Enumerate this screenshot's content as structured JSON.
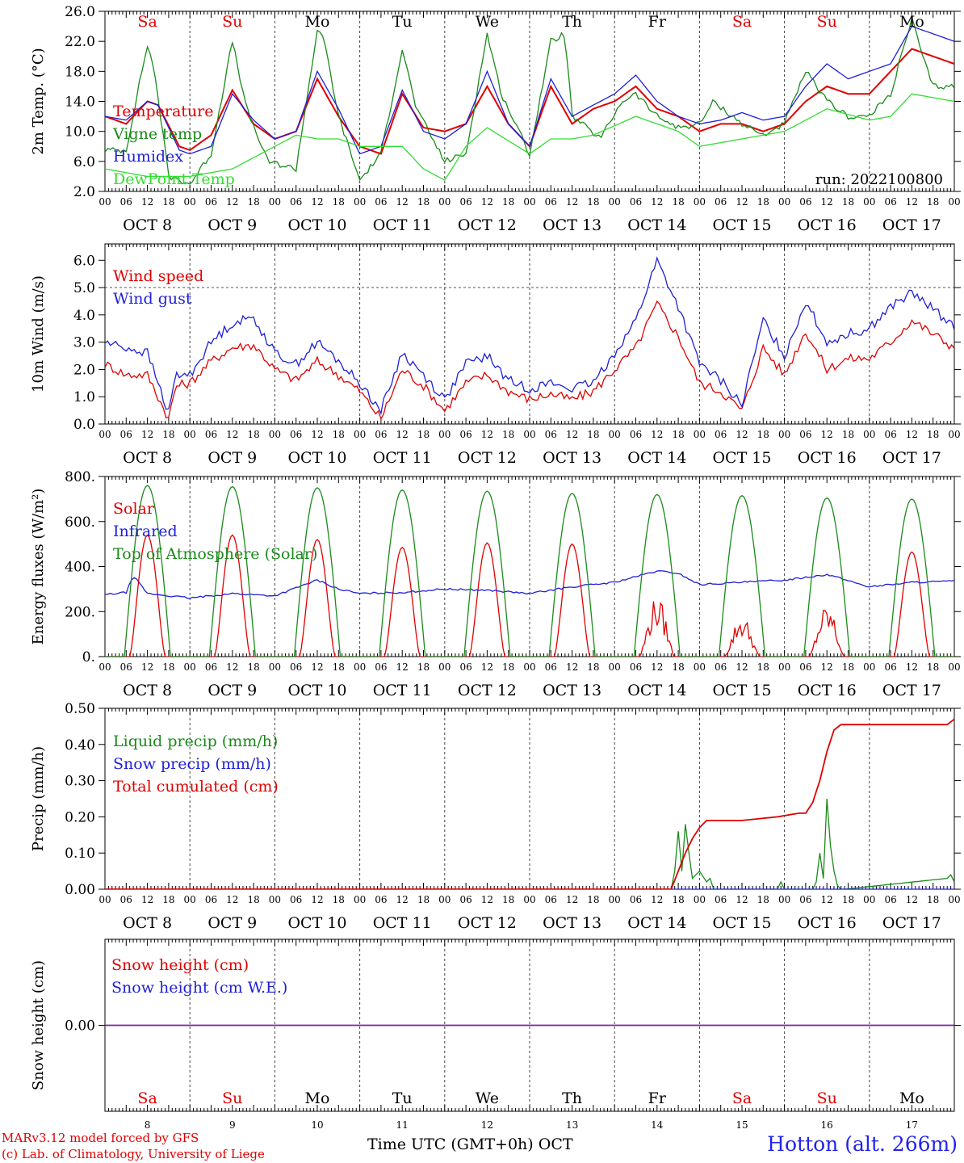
{
  "colors": {
    "red": "#e00000",
    "green": "#1a8a1a",
    "blue": "#1f1fd8",
    "lightgreen": "#33dd33",
    "purple": "#7a1fb0",
    "axis": "#000000"
  },
  "days": [
    {
      "abbr": "Sa",
      "num": "8",
      "weekend": true
    },
    {
      "abbr": "Su",
      "num": "9",
      "weekend": true
    },
    {
      "abbr": "Mo",
      "num": "10",
      "weekend": false
    },
    {
      "abbr": "Tu",
      "num": "11",
      "weekend": false
    },
    {
      "abbr": "We",
      "num": "12",
      "weekend": false
    },
    {
      "abbr": "Th",
      "num": "13",
      "weekend": false
    },
    {
      "abbr": "Fr",
      "num": "14",
      "weekend": false
    },
    {
      "abbr": "Sa",
      "num": "15",
      "weekend": true
    },
    {
      "abbr": "Su",
      "num": "16",
      "weekend": true
    },
    {
      "abbr": "Mo",
      "num": "17",
      "weekend": false
    }
  ],
  "month_label": "OCT",
  "hour_ticks": [
    "00",
    "06",
    "12",
    "18"
  ],
  "footer": {
    "model": "MARv3.12 model forced by GFS",
    "copyright": "(c) Lab. of Climatology, University of Liege",
    "x_title": "Time UTC (GMT+0h)",
    "x_month": "OCT",
    "station": "Hotton (alt. 266m)"
  },
  "chart_data": [
    {
      "type": "line",
      "ylabel": "2m Temp. (°C)",
      "ylim": [
        2,
        26
      ],
      "yticks": [
        "2.0",
        "6.0",
        "10.0",
        "14.0",
        "18.0",
        "22.0",
        "26.0"
      ],
      "annotation": "run: 2022100800",
      "x_unit": "hours since Oct 8 00 UTC",
      "series": [
        {
          "name": "Temperature",
          "color": "red",
          "x": [
            0,
            6,
            12,
            15,
            21,
            24,
            30,
            36,
            42,
            48,
            54,
            60,
            66,
            72,
            78,
            84,
            90,
            96,
            102,
            108,
            114,
            120,
            126,
            132,
            138,
            144,
            150,
            156,
            162,
            168,
            174,
            180,
            186,
            192,
            198,
            204,
            210,
            216,
            222,
            228,
            234,
            240
          ],
          "y": [
            12,
            11,
            14,
            13.5,
            8,
            7.5,
            9.5,
            15.5,
            11,
            9,
            10,
            17,
            12,
            8,
            7,
            15,
            10.5,
            10,
            11,
            16,
            11,
            8,
            16,
            11,
            13,
            14,
            16,
            13,
            12,
            10,
            11,
            11,
            10,
            11,
            14,
            16,
            15,
            15,
            18,
            21,
            20,
            19
          ]
        },
        {
          "name": "Vigne temp",
          "color": "green",
          "x": [
            0,
            6,
            10,
            12,
            14,
            18,
            24,
            30,
            36,
            40,
            46,
            54,
            60,
            62,
            66,
            72,
            78,
            84,
            88,
            96,
            102,
            108,
            112,
            120,
            126,
            130,
            132,
            140,
            146,
            150,
            156,
            162,
            168,
            172,
            180,
            186,
            192,
            198,
            204,
            210,
            216,
            222,
            228,
            231,
            234,
            240
          ],
          "y": [
            7.5,
            7.5,
            17,
            21.5,
            18,
            4,
            3,
            7,
            22,
            13,
            6,
            5,
            23.5,
            22,
            12,
            3.5,
            7,
            21,
            13,
            6,
            7,
            23,
            15,
            7,
            22,
            23,
            12,
            9,
            14,
            15,
            12,
            10.5,
            11,
            14,
            11,
            9.5,
            11,
            18,
            14,
            12,
            12,
            15,
            25,
            20,
            16,
            16
          ]
        },
        {
          "name": "Humidex",
          "color": "blue",
          "x": [
            0,
            6,
            12,
            15,
            21,
            24,
            30,
            36,
            42,
            48,
            54,
            60,
            66,
            72,
            78,
            84,
            90,
            96,
            102,
            108,
            114,
            120,
            126,
            132,
            138,
            144,
            150,
            156,
            162,
            168,
            174,
            180,
            186,
            192,
            198,
            204,
            210,
            216,
            222,
            228,
            234,
            240
          ],
          "y": [
            12,
            11.5,
            14,
            13.5,
            7.5,
            7,
            8,
            15,
            11.5,
            9,
            10,
            18,
            13,
            7,
            8,
            15.5,
            10,
            9,
            11,
            18,
            11,
            8,
            17,
            12,
            13.5,
            15,
            17.5,
            14,
            12,
            11,
            11.5,
            12.5,
            11.5,
            12,
            16,
            19,
            17,
            18,
            19,
            24,
            23,
            22
          ]
        },
        {
          "name": "DewPoint Temp",
          "color": "lightgreen",
          "x": [
            0,
            12,
            24,
            36,
            48,
            54,
            60,
            66,
            72,
            78,
            84,
            90,
            96,
            102,
            108,
            120,
            126,
            132,
            138,
            150,
            162,
            168,
            180,
            192,
            204,
            216,
            222,
            228,
            240
          ],
          "y": [
            5,
            4,
            4,
            5,
            8,
            9.5,
            9,
            9,
            8,
            8,
            8,
            5,
            3.5,
            8,
            10.5,
            7,
            9,
            9,
            9.5,
            12,
            10,
            8,
            9,
            10,
            13,
            11.5,
            12,
            15,
            14
          ]
        }
      ]
    },
    {
      "type": "line",
      "ylabel": "10m Wind (m/s)",
      "ylim": [
        0,
        6.6
      ],
      "yticks": [
        "0.0",
        "1.0",
        "2.0",
        "3.0",
        "4.0",
        "5.0",
        "6.0"
      ],
      "ref_line": 5.0,
      "x_unit": "hours since Oct 8 00 UTC",
      "series": [
        {
          "name": "Wind speed",
          "color": "red",
          "x": [
            0,
            6,
            12,
            18,
            20,
            24,
            30,
            36,
            42,
            48,
            54,
            60,
            66,
            72,
            78,
            84,
            90,
            96,
            102,
            108,
            114,
            120,
            126,
            132,
            138,
            144,
            150,
            156,
            162,
            168,
            174,
            180,
            186,
            192,
            198,
            204,
            210,
            216,
            222,
            228,
            234,
            240
          ],
          "y": [
            2.2,
            1.8,
            1.8,
            0.2,
            1.4,
            1.5,
            2.3,
            2.8,
            2.9,
            2.0,
            1.6,
            2.3,
            1.8,
            1.2,
            0.2,
            2.0,
            1.4,
            0.5,
            1.5,
            1.8,
            1.2,
            0.9,
            1.1,
            0.9,
            1.2,
            2.0,
            2.8,
            4.4,
            3.2,
            1.5,
            1.2,
            0.5,
            2.8,
            1.8,
            3.4,
            2.0,
            2.4,
            2.4,
            3.0,
            3.8,
            3.3,
            2.8
          ]
        },
        {
          "name": "Wind gust",
          "color": "blue",
          "x": [
            0,
            6,
            12,
            18,
            20,
            24,
            30,
            36,
            42,
            48,
            54,
            60,
            66,
            72,
            78,
            84,
            90,
            96,
            102,
            108,
            114,
            120,
            126,
            132,
            138,
            144,
            150,
            156,
            162,
            168,
            174,
            180,
            186,
            192,
            198,
            204,
            210,
            216,
            222,
            228,
            234,
            240
          ],
          "y": [
            3.0,
            2.8,
            2.6,
            0.4,
            1.8,
            1.8,
            3.0,
            3.7,
            3.9,
            2.6,
            2.2,
            3.0,
            2.3,
            1.5,
            0.5,
            2.6,
            1.8,
            0.9,
            2.2,
            2.5,
            1.6,
            1.3,
            1.5,
            1.3,
            1.5,
            2.6,
            3.8,
            6.0,
            4.3,
            2.2,
            1.6,
            0.7,
            3.8,
            2.5,
            4.5,
            3.0,
            3.3,
            3.5,
            4.3,
            4.8,
            4.2,
            3.6
          ]
        }
      ]
    },
    {
      "type": "line",
      "ylabel": "Energy fluxes (W/m²)",
      "ylim": [
        0,
        800
      ],
      "yticks": [
        "0.",
        "200.",
        "400.",
        "600.",
        "800."
      ],
      "x_unit": "hours since Oct 8 00 UTC",
      "series": [
        {
          "name": "Solar",
          "color": "red",
          "day_peaks": [
            540,
            540,
            520,
            485,
            505,
            500,
            270,
            185,
            230,
            465
          ]
        },
        {
          "name": "Infrared",
          "color": "blue",
          "x": [
            0,
            6,
            8,
            12,
            24,
            36,
            48,
            60,
            66,
            72,
            84,
            96,
            108,
            120,
            132,
            144,
            156,
            162,
            168,
            180,
            192,
            204,
            216,
            228,
            240
          ],
          "y": [
            275,
            285,
            360,
            280,
            260,
            280,
            270,
            340,
            300,
            280,
            285,
            300,
            295,
            280,
            310,
            330,
            380,
            370,
            320,
            330,
            340,
            365,
            310,
            330,
            335
          ]
        },
        {
          "name": "Top of Atmosphere (Solar)",
          "color": "green",
          "day_peaks": [
            760,
            755,
            750,
            740,
            735,
            725,
            720,
            715,
            705,
            700
          ]
        }
      ]
    },
    {
      "type": "line",
      "ylabel": "Precip (mm/h)",
      "ylim": [
        0,
        0.5
      ],
      "yticks": [
        "0.00",
        "0.10",
        "0.20",
        "0.30",
        "0.40",
        "0.50"
      ],
      "x_unit": "hours since Oct 8 00 UTC",
      "series": [
        {
          "name": "Liquid precip (mm/h)",
          "color": "green",
          "x": [
            0,
            160,
            161,
            162,
            163,
            164,
            165,
            166,
            168,
            170,
            171,
            172,
            190,
            191,
            192,
            200,
            201,
            202,
            203,
            204,
            205,
            206,
            207,
            208,
            209,
            238,
            239,
            240
          ],
          "y": [
            0,
            0,
            0.05,
            0.16,
            0.05,
            0.18,
            0.1,
            0.03,
            0.05,
            0.02,
            0.03,
            0.0,
            0.0,
            0.02,
            0.0,
            0.0,
            0.02,
            0.1,
            0.03,
            0.25,
            0.12,
            0.05,
            0.01,
            0.0,
            0.0,
            0.03,
            0.04,
            0.02
          ]
        },
        {
          "name": "Snow precip (mm/h)",
          "color": "blue",
          "x": [
            0,
            240
          ],
          "y": [
            0,
            0
          ]
        },
        {
          "name": "Total cumulated (cm)",
          "color": "red",
          "x": [
            0,
            160,
            162,
            164,
            166,
            168,
            170,
            180,
            190,
            196,
            198,
            200,
            202,
            204,
            206,
            208,
            210,
            230,
            238,
            240
          ],
          "y": [
            0,
            0,
            0.05,
            0.1,
            0.14,
            0.17,
            0.19,
            0.19,
            0.2,
            0.21,
            0.21,
            0.24,
            0.3,
            0.38,
            0.44,
            0.455,
            0.455,
            0.455,
            0.455,
            0.47
          ]
        }
      ]
    },
    {
      "type": "line",
      "ylabel": "Snow height (cm)",
      "ylim": [
        -0.5,
        0.5
      ],
      "yticks": [
        "0.00"
      ],
      "x_unit": "hours since Oct 8 00 UTC",
      "series": [
        {
          "name": "Snow height (cm)",
          "color": "red",
          "x": [
            0,
            240
          ],
          "y": [
            0,
            0
          ]
        },
        {
          "name": "Snow height (cm W.E.)",
          "color": "blue",
          "x": [
            0,
            240
          ],
          "y": [
            0,
            0
          ]
        }
      ]
    }
  ]
}
